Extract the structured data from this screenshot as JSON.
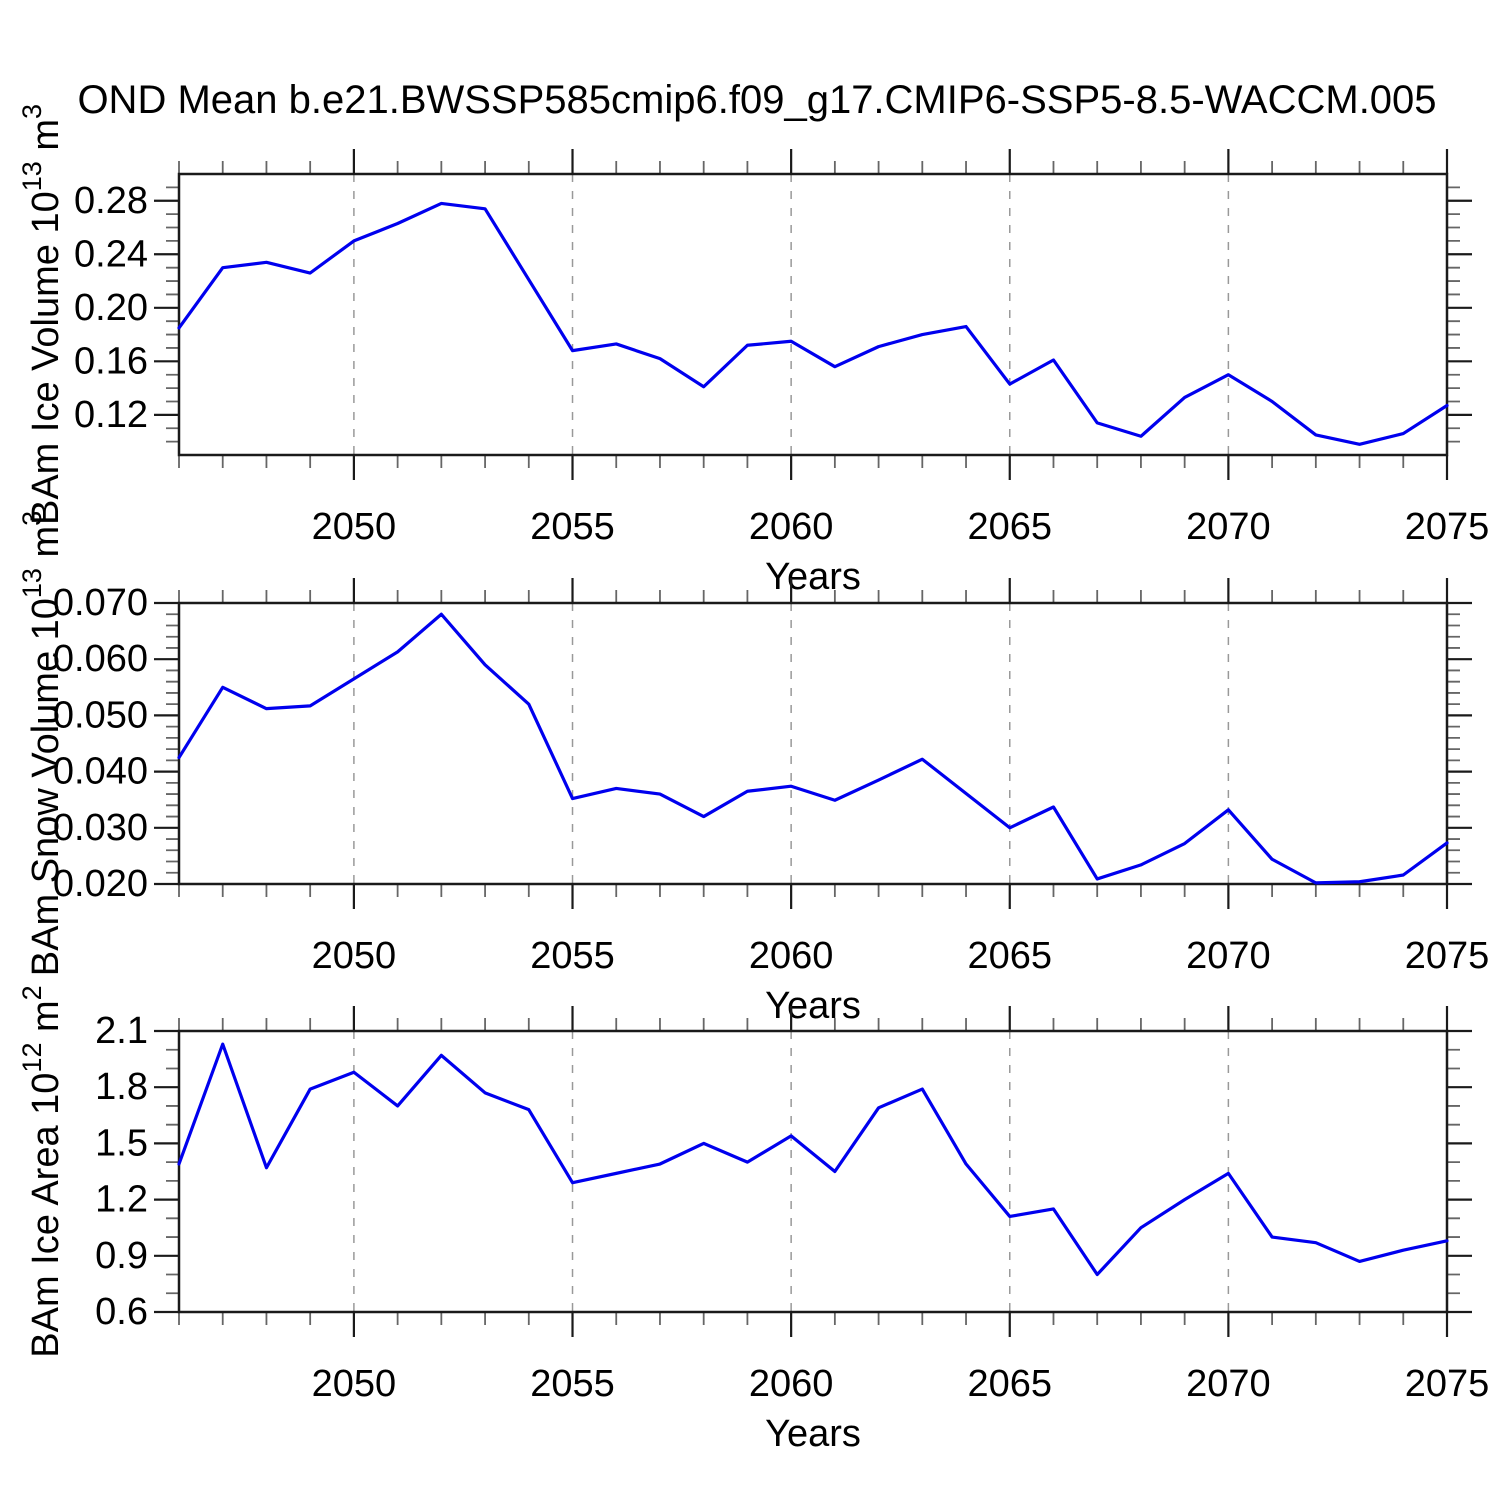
{
  "title": "OND Mean b.e21.BWSSP585cmip6.f09_g17.CMIP6-SSP5-8.5-WACCM.005",
  "style": {
    "line_color": "#0000ee",
    "grid_color": "#999999",
    "axis_color": "#1a1a1a",
    "major_tick_color": "#1a1a1a",
    "minor_tick_color": "#666666",
    "text_color": "#000000",
    "background": "#ffffff"
  },
  "chart_data": [
    {
      "type": "line",
      "name": "ice-volume",
      "ylabel_text": "BAm Ice Volume 10^13 m^3",
      "ylabel_segments": [
        {
          "t": "BAm Ice Volume 10"
        },
        {
          "t": "13",
          "sup": true
        },
        {
          "t": " m"
        },
        {
          "t": "3",
          "sup": true
        }
      ],
      "xlabel": "Years",
      "x": [
        2046,
        2047,
        2048,
        2049,
        2050,
        2051,
        2052,
        2053,
        2054,
        2055,
        2056,
        2057,
        2058,
        2059,
        2060,
        2061,
        2062,
        2063,
        2064,
        2065,
        2066,
        2067,
        2068,
        2069,
        2070,
        2071,
        2072,
        2073,
        2074,
        2075
      ],
      "values": [
        0.185,
        0.23,
        0.234,
        0.226,
        0.25,
        0.263,
        0.278,
        0.274,
        0.221,
        0.168,
        0.173,
        0.162,
        0.141,
        0.172,
        0.175,
        0.156,
        0.171,
        0.18,
        0.186,
        0.143,
        0.161,
        0.114,
        0.104,
        0.133,
        0.15,
        0.13,
        0.105,
        0.098,
        0.106,
        0.127
      ],
      "xlim": [
        2046,
        2075
      ],
      "ylim": [
        0.09,
        0.3
      ],
      "yticks": [
        {
          "v": 0.12,
          "label": "0.12"
        },
        {
          "v": 0.16,
          "label": "0.16"
        },
        {
          "v": 0.2,
          "label": "0.20"
        },
        {
          "v": 0.24,
          "label": "0.24"
        },
        {
          "v": 0.28,
          "label": "0.28"
        }
      ],
      "y_minor_step": 0.01,
      "xticks": [
        {
          "v": 2050,
          "label": "2050"
        },
        {
          "v": 2055,
          "label": "2055"
        },
        {
          "v": 2060,
          "label": "2060"
        },
        {
          "v": 2065,
          "label": "2065"
        },
        {
          "v": 2070,
          "label": "2070"
        },
        {
          "v": 2075,
          "label": "2075"
        }
      ],
      "x_minor_step": 1,
      "grid_x": [
        2050,
        2055,
        2060,
        2065,
        2070
      ]
    },
    {
      "type": "line",
      "name": "snow-volume",
      "ylabel_text": "BAm Snow Volume 10^13 m^3",
      "ylabel_segments": [
        {
          "t": "BAm Snow Volume 10"
        },
        {
          "t": "13",
          "sup": true
        },
        {
          "t": " m"
        },
        {
          "t": "3",
          "sup": true
        }
      ],
      "xlabel": "Years",
      "x": [
        2046,
        2047,
        2048,
        2049,
        2050,
        2051,
        2052,
        2053,
        2054,
        2055,
        2056,
        2057,
        2058,
        2059,
        2060,
        2061,
        2062,
        2063,
        2064,
        2065,
        2066,
        2067,
        2068,
        2069,
        2070,
        2071,
        2072,
        2073,
        2074,
        2075
      ],
      "values": [
        0.0425,
        0.055,
        0.0512,
        0.0517,
        0.0565,
        0.0613,
        0.068,
        0.059,
        0.052,
        0.0352,
        0.037,
        0.036,
        0.032,
        0.0365,
        0.0374,
        0.0349,
        0.0385,
        0.0422,
        0.0361,
        0.03,
        0.0337,
        0.0209,
        0.0234,
        0.0272,
        0.0332,
        0.0244,
        0.0202,
        0.0204,
        0.0216,
        0.0273
      ],
      "xlim": [
        2046,
        2075
      ],
      "ylim": [
        0.02,
        0.07
      ],
      "yticks": [
        {
          "v": 0.02,
          "label": "0.020"
        },
        {
          "v": 0.03,
          "label": "0.030"
        },
        {
          "v": 0.04,
          "label": "0.040"
        },
        {
          "v": 0.05,
          "label": "0.050"
        },
        {
          "v": 0.06,
          "label": "0.060"
        },
        {
          "v": 0.07,
          "label": "0.070"
        }
      ],
      "y_minor_step": 0.002,
      "xticks": [
        {
          "v": 2050,
          "label": "2050"
        },
        {
          "v": 2055,
          "label": "2055"
        },
        {
          "v": 2060,
          "label": "2060"
        },
        {
          "v": 2065,
          "label": "2065"
        },
        {
          "v": 2070,
          "label": "2070"
        },
        {
          "v": 2075,
          "label": "2075"
        }
      ],
      "x_minor_step": 1,
      "grid_x": [
        2050,
        2055,
        2060,
        2065,
        2070
      ]
    },
    {
      "type": "line",
      "name": "ice-area",
      "ylabel_text": "BAm Ice Area 10^12 m^2",
      "ylabel_segments": [
        {
          "t": "BAm Ice Area 10"
        },
        {
          "t": "12",
          "sup": true
        },
        {
          "t": " m"
        },
        {
          "t": "2",
          "sup": true
        }
      ],
      "xlabel": "Years",
      "x": [
        2046,
        2047,
        2048,
        2049,
        2050,
        2051,
        2052,
        2053,
        2054,
        2055,
        2056,
        2057,
        2058,
        2059,
        2060,
        2061,
        2062,
        2063,
        2064,
        2065,
        2066,
        2067,
        2068,
        2069,
        2070,
        2071,
        2072,
        2073,
        2074,
        2075
      ],
      "values": [
        1.39,
        2.03,
        1.37,
        1.79,
        1.88,
        1.7,
        1.97,
        1.77,
        1.68,
        1.29,
        1.34,
        1.39,
        1.5,
        1.4,
        1.54,
        1.35,
        1.69,
        1.79,
        1.39,
        1.11,
        1.15,
        0.8,
        1.05,
        1.2,
        1.34,
        1.0,
        0.97,
        0.87,
        0.93,
        0.98
      ],
      "xlim": [
        2046,
        2075
      ],
      "ylim": [
        0.6,
        2.1
      ],
      "yticks": [
        {
          "v": 0.6,
          "label": "0.6"
        },
        {
          "v": 0.9,
          "label": "0.9"
        },
        {
          "v": 1.2,
          "label": "1.2"
        },
        {
          "v": 1.5,
          "label": "1.5"
        },
        {
          "v": 1.8,
          "label": "1.8"
        },
        {
          "v": 2.1,
          "label": "2.1"
        }
      ],
      "y_minor_step": 0.1,
      "xticks": [
        {
          "v": 2050,
          "label": "2050"
        },
        {
          "v": 2055,
          "label": "2055"
        },
        {
          "v": 2060,
          "label": "2060"
        },
        {
          "v": 2065,
          "label": "2065"
        },
        {
          "v": 2070,
          "label": "2070"
        },
        {
          "v": 2075,
          "label": "2075"
        }
      ],
      "x_minor_step": 1,
      "grid_x": [
        2050,
        2055,
        2060,
        2065,
        2070
      ]
    }
  ]
}
